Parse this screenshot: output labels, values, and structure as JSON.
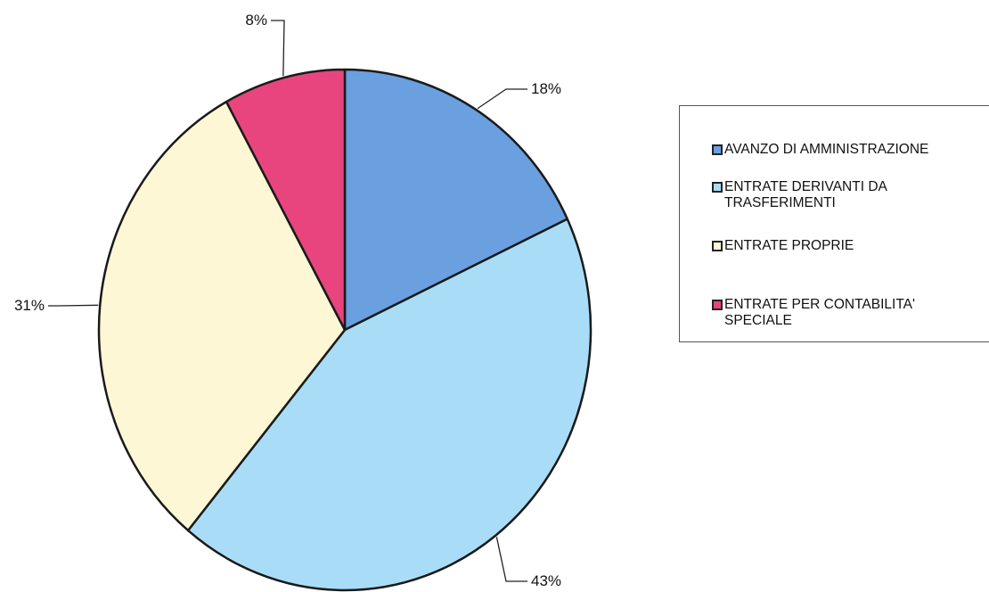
{
  "chart_data": {
    "type": "pie",
    "slices": [
      {
        "label": "AVANZO DI AMMINISTRAZIONE",
        "value": 18,
        "display": "18%",
        "color": "#6a9fe0"
      },
      {
        "label": "ENTRATE DERIVANTI DA TRASFERIMENTI",
        "value": 43,
        "display": "43%",
        "color": "#a9ddf7"
      },
      {
        "label": "ENTRATE PROPRIE",
        "value": 31,
        "display": "31%",
        "color": "#fdf7d5"
      },
      {
        "label": "ENTRATE PER CONTABILITA' SPECIALE",
        "value": 8,
        "display": "8%",
        "color": "#e8457e"
      }
    ],
    "legend": {
      "placement": "right",
      "items": [
        {
          "label": "AVANZO DI AMMINISTRAZIONE",
          "color": "#6a9fe0"
        },
        {
          "label": "ENTRATE DERIVANTI DA\nTRASFERIMENTI",
          "color": "#a9ddf7"
        },
        {
          "label": "ENTRATE PROPRIE",
          "color": "#fdf7d5"
        },
        {
          "label": "ENTRATE PER CONTABILITA'\nSPECIALE",
          "color": "#e8457e"
        }
      ]
    }
  }
}
